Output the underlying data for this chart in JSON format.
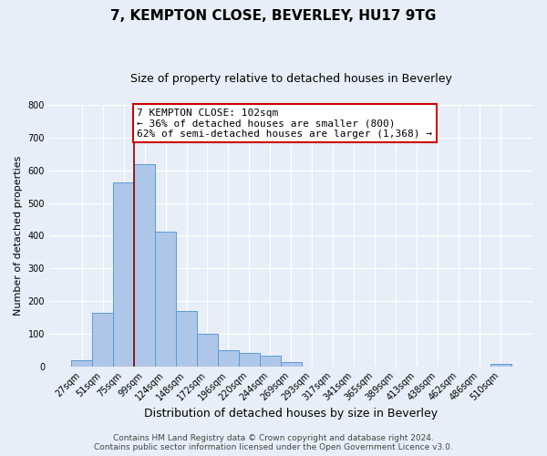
{
  "title": "7, KEMPTON CLOSE, BEVERLEY, HU17 9TG",
  "subtitle": "Size of property relative to detached houses in Beverley",
  "xlabel": "Distribution of detached houses by size in Beverley",
  "ylabel": "Number of detached properties",
  "footer_lines": [
    "Contains HM Land Registry data © Crown copyright and database right 2024.",
    "Contains public sector information licensed under the Open Government Licence v3.0."
  ],
  "bin_labels": [
    "27sqm",
    "51sqm",
    "75sqm",
    "99sqm",
    "124sqm",
    "148sqm",
    "172sqm",
    "196sqm",
    "220sqm",
    "244sqm",
    "269sqm",
    "293sqm",
    "317sqm",
    "341sqm",
    "365sqm",
    "389sqm",
    "413sqm",
    "438sqm",
    "462sqm",
    "486sqm",
    "510sqm"
  ],
  "bar_heights": [
    20,
    163,
    562,
    620,
    413,
    170,
    100,
    50,
    40,
    33,
    12,
    0,
    0,
    0,
    0,
    0,
    0,
    0,
    0,
    0,
    7
  ],
  "bar_color": "#aec6e8",
  "bar_edge_color": "#5b9bd5",
  "ylim": [
    0,
    800
  ],
  "yticks": [
    0,
    100,
    200,
    300,
    400,
    500,
    600,
    700,
    800
  ],
  "vline_x": 2.5,
  "vline_color": "#8b0000",
  "annotation_box_text": "7 KEMPTON CLOSE: 102sqm\n← 36% of detached houses are smaller (800)\n62% of semi-detached houses are larger (1,368) →",
  "annotation_box_color": "#ffffff",
  "annotation_box_edge_color": "#cc0000",
  "background_color": "#e8eef7",
  "plot_bg_color": "#e8eef7",
  "grid_color": "#ffffff",
  "title_fontsize": 11,
  "subtitle_fontsize": 9,
  "xlabel_fontsize": 9,
  "ylabel_fontsize": 8,
  "tick_fontsize": 7,
  "annotation_fontsize": 8,
  "footer_fontsize": 6.5
}
